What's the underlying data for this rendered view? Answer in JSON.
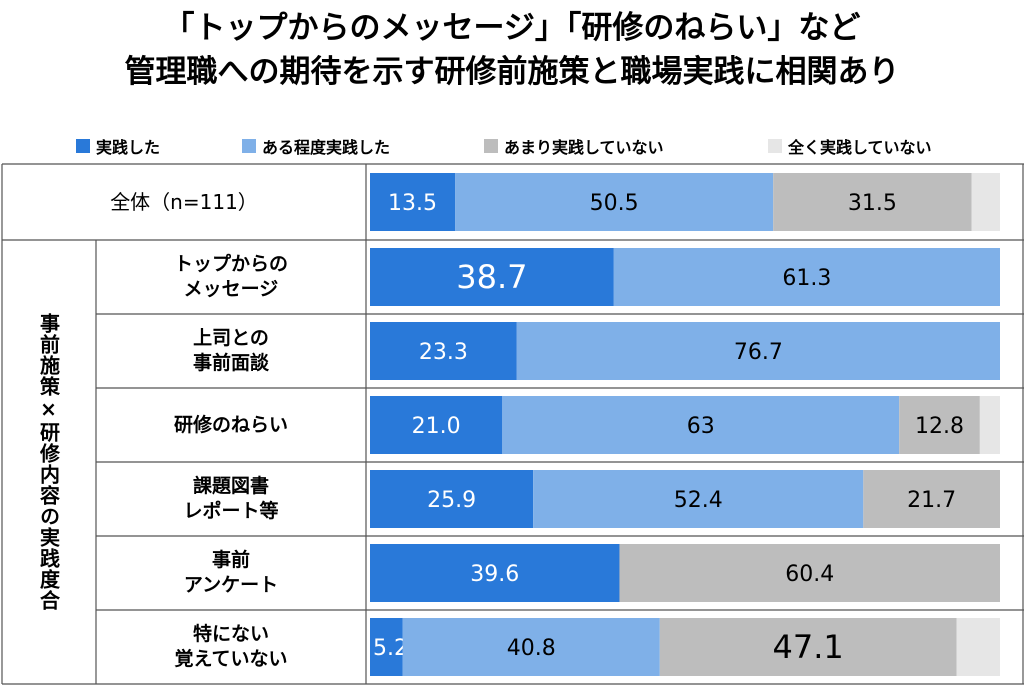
{
  "chart_data": {
    "type": "stacked-bar-horizontal",
    "title": [
      "「トップからのメッセージ」「研修のねらい」など",
      "管理職への期待を示す研修前施策と職場実践に相関あり"
    ],
    "legend": [
      {
        "label": "実践した",
        "color": "#2979d9"
      },
      {
        "label": "ある程度実践した",
        "color": "#7fb0e8"
      },
      {
        "label": "あまり実践していない",
        "color": "#bdbdbd"
      },
      {
        "label": "全く実践していない",
        "color": "#e6e6e6"
      }
    ],
    "group_label": "事前施策×研修内容の実践度合",
    "overall": {
      "label": "全体（n=111）",
      "values": [
        13.5,
        50.5,
        31.5,
        4.5
      ],
      "labels": [
        "13.5",
        "50.5",
        "31.5",
        ""
      ]
    },
    "rows": [
      {
        "label": [
          "トップからの",
          "メッセージ"
        ],
        "values": [
          38.7,
          61.3,
          0,
          0
        ],
        "labels": [
          "38.7",
          "61.3",
          "",
          ""
        ],
        "big": [
          true,
          false,
          false,
          false
        ]
      },
      {
        "label": [
          "上司との",
          "事前面談"
        ],
        "values": [
          23.3,
          76.7,
          0,
          0
        ],
        "labels": [
          "23.3",
          "76.7",
          "",
          ""
        ],
        "big": [
          false,
          false,
          false,
          false
        ]
      },
      {
        "label": [
          "研修のねらい"
        ],
        "values": [
          21.0,
          63.0,
          12.8,
          3.2
        ],
        "labels": [
          "21.0",
          "63",
          "12.8",
          ""
        ],
        "big": [
          false,
          false,
          false,
          false
        ]
      },
      {
        "label": [
          "課題図書",
          "レポート等"
        ],
        "values": [
          25.9,
          52.4,
          21.7,
          0
        ],
        "labels": [
          "25.9",
          "52.4",
          "21.7",
          ""
        ],
        "big": [
          false,
          false,
          false,
          false
        ]
      },
      {
        "label": [
          "事前",
          "アンケート"
        ],
        "values": [
          39.6,
          0,
          60.4,
          0
        ],
        "labels": [
          "39.6",
          "",
          "60.4",
          ""
        ],
        "big": [
          false,
          false,
          false,
          false
        ]
      },
      {
        "label": [
          "特にない",
          "覚えていない"
        ],
        "values": [
          5.2,
          40.8,
          47.1,
          6.9
        ],
        "labels": [
          "5.2",
          "40.8",
          "47.1",
          ""
        ],
        "big": [
          false,
          false,
          true,
          false
        ]
      }
    ],
    "xlim": [
      0,
      100
    ]
  }
}
